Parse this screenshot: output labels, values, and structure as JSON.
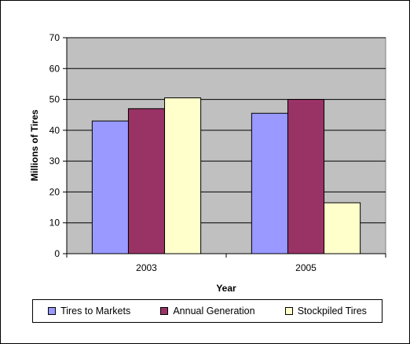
{
  "chart_data": {
    "type": "bar",
    "categories": [
      "2003",
      "2005"
    ],
    "series": [
      {
        "name": "Tires to Markets",
        "values": [
          43,
          45.5
        ],
        "color": "#9999FF"
      },
      {
        "name": "Annual Generation",
        "values": [
          47,
          50
        ],
        "color": "#993366"
      },
      {
        "name": "Stockpiled Tires",
        "values": [
          50.5,
          16.5
        ],
        "color": "#FFFFCC"
      }
    ],
    "xlabel": "Year",
    "ylabel": "Millions of Tires",
    "ylim": [
      0,
      70
    ],
    "yticks": [
      0,
      10,
      20,
      30,
      40,
      50,
      60,
      70
    ],
    "grid": true,
    "plot_background": "#C0C0C0",
    "legend_position": "bottom"
  }
}
